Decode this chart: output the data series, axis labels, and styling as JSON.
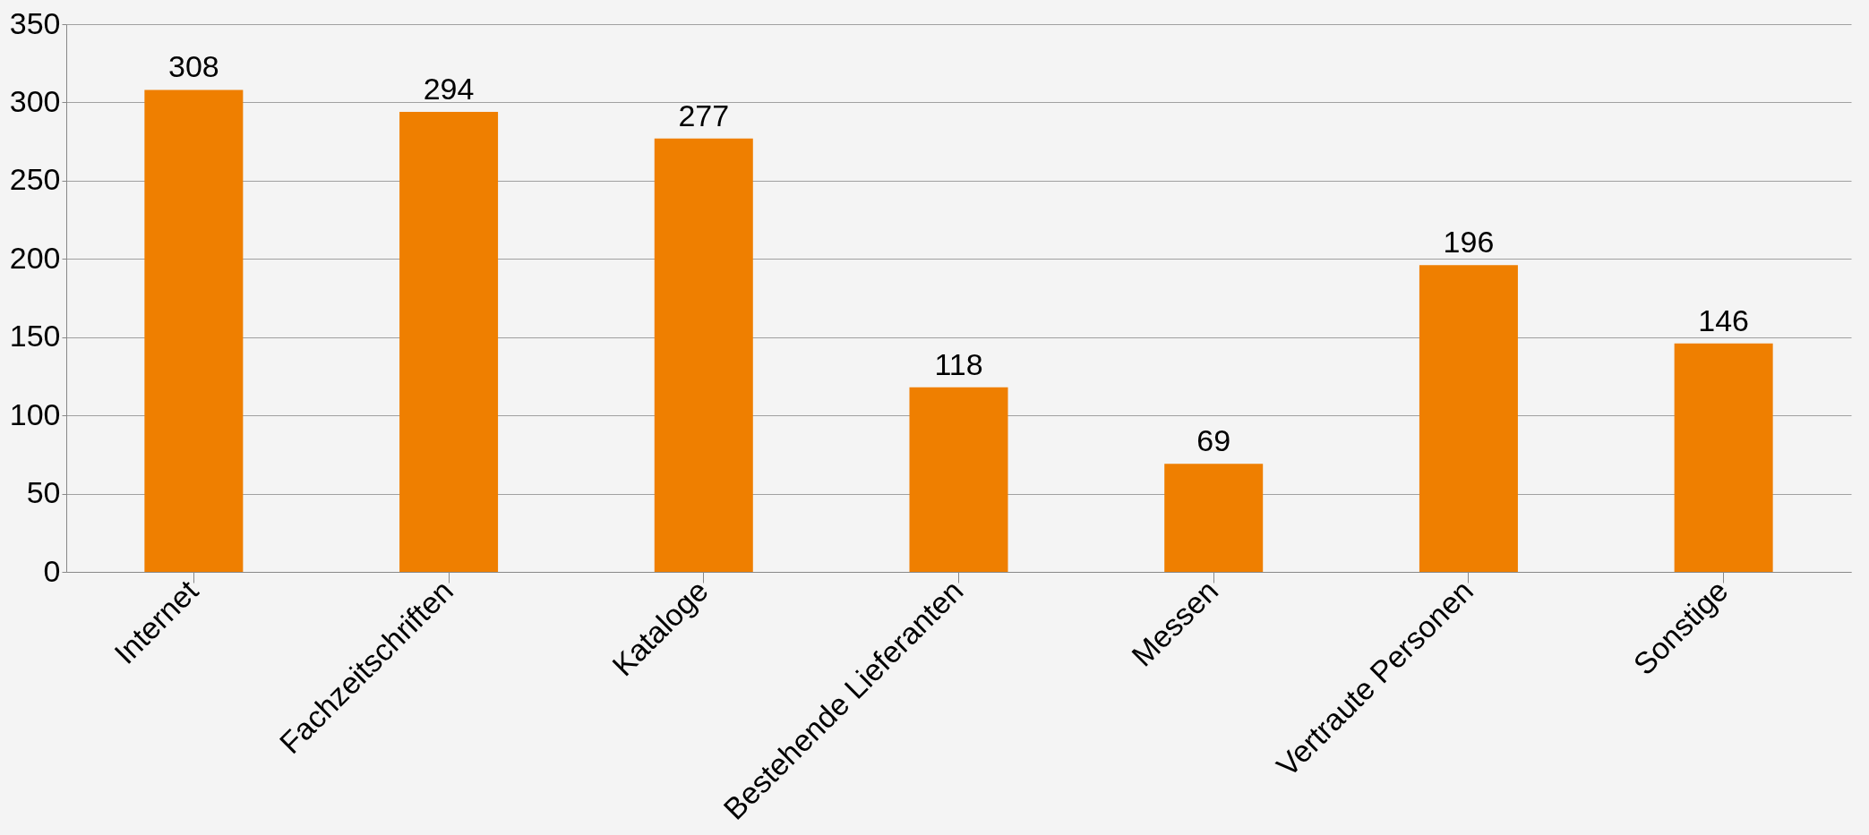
{
  "chart_data": {
    "type": "bar",
    "categories": [
      "Internet",
      "Fachzeitschriften",
      "Kataloge",
      "Bestehende Lieferanten",
      "Messen",
      "Vertraute Personen",
      "Sonstige"
    ],
    "values": [
      308,
      294,
      277,
      118,
      69,
      196,
      146
    ],
    "color": "#ef7f00",
    "ylim": [
      0,
      350
    ],
    "yticks": [
      0,
      50,
      100,
      150,
      200,
      250,
      300,
      350
    ],
    "grid": "y",
    "data_labels": true
  }
}
